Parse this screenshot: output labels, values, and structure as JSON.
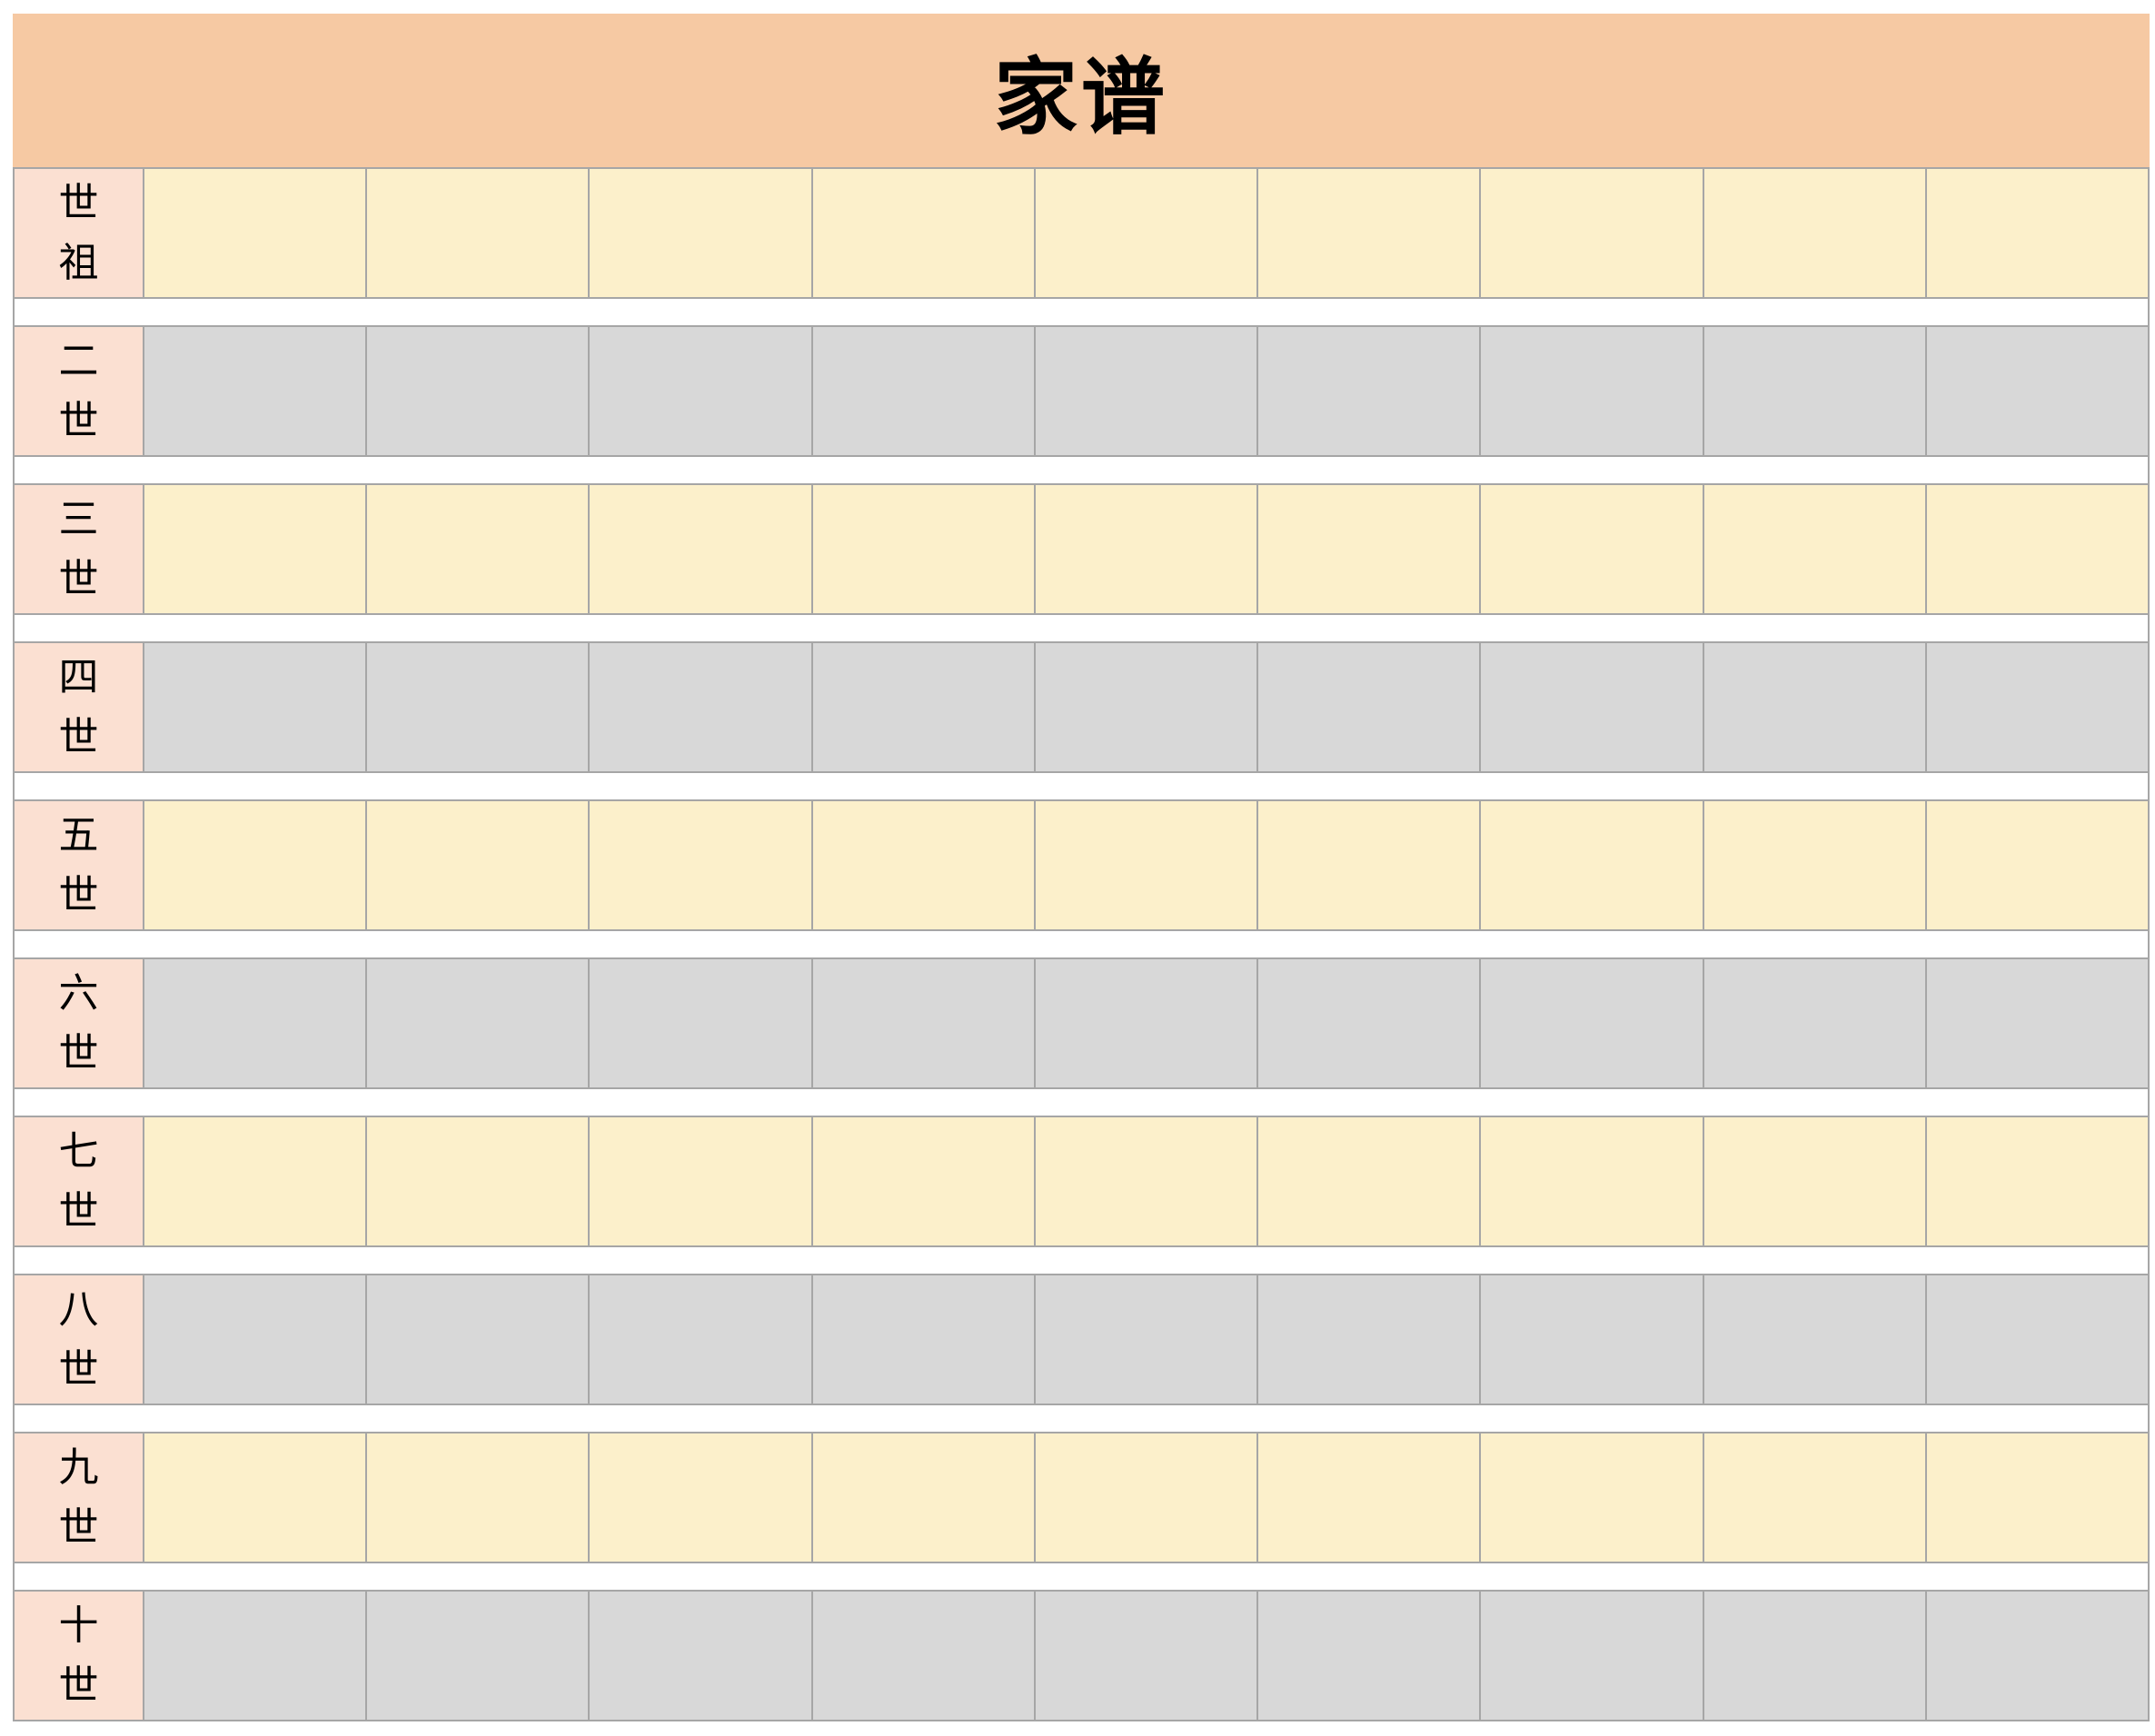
{
  "title": "家谱",
  "palette": {
    "header_bg": "#F6C9A3",
    "label_bg": "#FBE0D2",
    "yellow_cell": "#FCF0CB",
    "gray_cell": "#D8D8D8",
    "border": "#A6A6A6",
    "title_color": "#000000"
  },
  "table": {
    "columns": 9,
    "cell_text": "",
    "rows": [
      {
        "label": "世祖",
        "body": "yellow"
      },
      {
        "label": "二世",
        "body": "gray"
      },
      {
        "label": "三世",
        "body": "yellow"
      },
      {
        "label": "四世",
        "body": "gray"
      },
      {
        "label": "五世",
        "body": "yellow"
      },
      {
        "label": "六世",
        "body": "gray"
      },
      {
        "label": "七世",
        "body": "yellow"
      },
      {
        "label": "八世",
        "body": "gray"
      },
      {
        "label": "九世",
        "body": "yellow"
      },
      {
        "label": "十世",
        "body": "gray"
      }
    ]
  }
}
